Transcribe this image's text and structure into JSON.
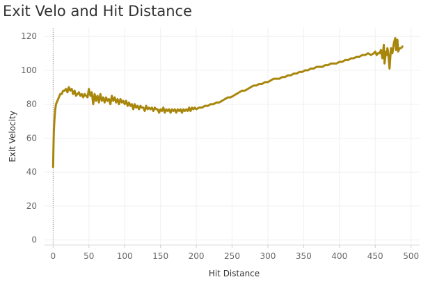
{
  "chart_data": {
    "type": "line",
    "title": "Exit Velo and Hit Distance",
    "xlabel": "Hit Distance",
    "ylabel": "Exit Velocity",
    "xlim": [
      -12,
      512
    ],
    "ylim": [
      -3,
      125
    ],
    "x_ticks": [
      0,
      50,
      100,
      150,
      200,
      250,
      300,
      350,
      400,
      450,
      500
    ],
    "y_ticks": [
      0,
      20,
      40,
      60,
      80,
      100,
      120
    ],
    "grid": true,
    "reference_line_x": 0,
    "series": [
      {
        "color": "#A8860C",
        "points": [
          [
            0,
            43
          ],
          [
            0.5,
            55
          ],
          [
            1,
            64
          ],
          [
            2,
            72
          ],
          [
            3,
            77
          ],
          [
            4,
            80
          ],
          [
            6,
            82
          ],
          [
            8,
            84
          ],
          [
            10,
            86
          ],
          [
            12,
            86
          ],
          [
            14,
            88
          ],
          [
            16,
            88
          ],
          [
            18,
            89
          ],
          [
            20,
            87
          ],
          [
            22,
            90
          ],
          [
            24,
            88
          ],
          [
            26,
            89
          ],
          [
            28,
            86
          ],
          [
            30,
            88
          ],
          [
            32,
            85
          ],
          [
            34,
            86
          ],
          [
            36,
            87
          ],
          [
            38,
            85
          ],
          [
            40,
            86
          ],
          [
            42,
            84
          ],
          [
            44,
            86
          ],
          [
            46,
            85
          ],
          [
            48,
            84
          ],
          [
            50,
            89
          ],
          [
            52,
            85
          ],
          [
            54,
            87
          ],
          [
            56,
            80
          ],
          [
            58,
            86
          ],
          [
            60,
            82
          ],
          [
            62,
            85
          ],
          [
            64,
            81
          ],
          [
            66,
            86
          ],
          [
            68,
            82
          ],
          [
            70,
            84
          ],
          [
            72,
            81
          ],
          [
            74,
            84
          ],
          [
            76,
            82
          ],
          [
            78,
            83
          ],
          [
            80,
            80
          ],
          [
            82,
            85
          ],
          [
            84,
            82
          ],
          [
            86,
            84
          ],
          [
            88,
            81
          ],
          [
            90,
            83
          ],
          [
            92,
            80
          ],
          [
            94,
            83
          ],
          [
            96,
            81
          ],
          [
            98,
            82
          ],
          [
            100,
            80
          ],
          [
            102,
            82
          ],
          [
            104,
            79
          ],
          [
            106,
            81
          ],
          [
            108,
            79
          ],
          [
            110,
            80
          ],
          [
            112,
            77
          ],
          [
            114,
            80
          ],
          [
            116,
            78
          ],
          [
            118,
            79
          ],
          [
            120,
            77
          ],
          [
            122,
            79
          ],
          [
            124,
            78
          ],
          [
            126,
            78
          ],
          [
            128,
            76
          ],
          [
            130,
            79
          ],
          [
            132,
            77
          ],
          [
            134,
            78
          ],
          [
            136,
            77
          ],
          [
            138,
            78
          ],
          [
            140,
            76
          ],
          [
            142,
            78
          ],
          [
            144,
            77
          ],
          [
            146,
            77
          ],
          [
            148,
            75
          ],
          [
            150,
            77
          ],
          [
            152,
            76
          ],
          [
            154,
            78
          ],
          [
            156,
            75
          ],
          [
            158,
            77
          ],
          [
            160,
            76
          ],
          [
            162,
            77
          ],
          [
            164,
            75
          ],
          [
            166,
            77
          ],
          [
            168,
            76
          ],
          [
            170,
            77
          ],
          [
            172,
            75
          ],
          [
            174,
            77
          ],
          [
            176,
            76
          ],
          [
            178,
            77
          ],
          [
            180,
            75
          ],
          [
            182,
            77
          ],
          [
            184,
            76
          ],
          [
            186,
            77
          ],
          [
            188,
            76
          ],
          [
            190,
            78
          ],
          [
            192,
            76
          ],
          [
            194,
            78
          ],
          [
            196,
            77
          ],
          [
            198,
            78
          ],
          [
            200,
            77
          ],
          [
            204,
            78
          ],
          [
            208,
            78
          ],
          [
            212,
            79
          ],
          [
            216,
            79
          ],
          [
            220,
            80
          ],
          [
            224,
            80
          ],
          [
            228,
            81
          ],
          [
            232,
            81
          ],
          [
            236,
            82
          ],
          [
            240,
            83
          ],
          [
            244,
            84
          ],
          [
            248,
            84
          ],
          [
            252,
            85
          ],
          [
            256,
            86
          ],
          [
            260,
            87
          ],
          [
            264,
            88
          ],
          [
            268,
            88
          ],
          [
            272,
            89
          ],
          [
            276,
            90
          ],
          [
            280,
            91
          ],
          [
            284,
            91
          ],
          [
            288,
            92
          ],
          [
            292,
            92
          ],
          [
            296,
            93
          ],
          [
            300,
            93
          ],
          [
            304,
            94
          ],
          [
            308,
            95
          ],
          [
            312,
            95
          ],
          [
            316,
            95
          ],
          [
            320,
            96
          ],
          [
            324,
            96
          ],
          [
            328,
            97
          ],
          [
            332,
            97
          ],
          [
            336,
            98
          ],
          [
            340,
            98
          ],
          [
            344,
            99
          ],
          [
            348,
            99
          ],
          [
            352,
            100
          ],
          [
            356,
            100
          ],
          [
            360,
            101
          ],
          [
            364,
            101
          ],
          [
            368,
            102
          ],
          [
            372,
            102
          ],
          [
            376,
            102
          ],
          [
            380,
            103
          ],
          [
            384,
            103
          ],
          [
            388,
            104
          ],
          [
            392,
            104
          ],
          [
            396,
            104
          ],
          [
            400,
            105
          ],
          [
            404,
            105
          ],
          [
            408,
            106
          ],
          [
            412,
            106
          ],
          [
            416,
            107
          ],
          [
            420,
            107
          ],
          [
            424,
            108
          ],
          [
            428,
            108
          ],
          [
            432,
            109
          ],
          [
            436,
            109
          ],
          [
            440,
            110
          ],
          [
            444,
            109
          ],
          [
            448,
            110
          ],
          [
            450,
            111
          ],
          [
            452,
            109
          ],
          [
            454,
            110
          ],
          [
            456,
            110
          ],
          [
            458,
            112
          ],
          [
            460,
            107
          ],
          [
            462,
            115
          ],
          [
            463,
            104
          ],
          [
            465,
            111
          ],
          [
            466,
            109
          ],
          [
            467,
            113
          ],
          [
            468,
            111
          ],
          [
            470,
            101
          ],
          [
            472,
            113
          ],
          [
            474,
            110
          ],
          [
            476,
            116
          ],
          [
            478,
            119
          ],
          [
            479,
            112
          ],
          [
            480,
            113
          ],
          [
            481,
            118
          ],
          [
            482,
            111
          ],
          [
            484,
            113
          ],
          [
            486,
            113
          ],
          [
            488,
            114
          ]
        ]
      }
    ]
  }
}
